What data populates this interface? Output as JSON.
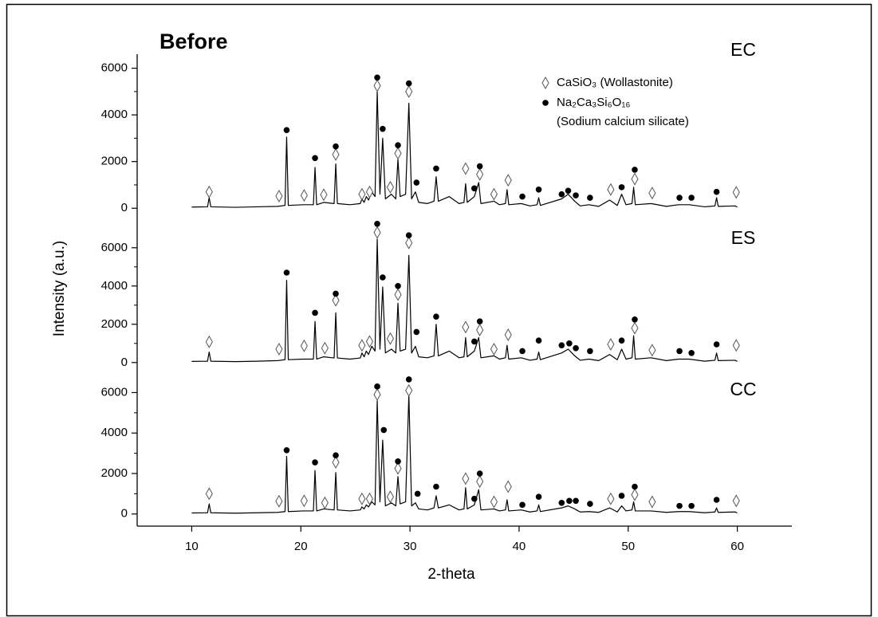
{
  "chart_data": {
    "type": "line",
    "title": "Before",
    "x_label": "2-theta",
    "y_label": "Intensity (a.u.)",
    "color": "#000000",
    "title_color": "#e8161b",
    "xlim": [
      5,
      65
    ],
    "xticks": [
      10,
      20,
      30,
      40,
      50,
      60
    ],
    "legend": [
      {
        "label": "CaSiO₃ (Wollastonite)"
      },
      {
        "label": "Na₂Ca₃Si₆O₁₆",
        "note": "(Sodium calcium silicate)"
      }
    ],
    "x": [
      10,
      11.45,
      11.6,
      11.75,
      14,
      16,
      17.9,
      18.55,
      18.7,
      18.85,
      20.2,
      21.15,
      21.3,
      21.45,
      22.1,
      23.05,
      23.2,
      23.35,
      24.5,
      25.45,
      25.6,
      25.8,
      26.0,
      26.2,
      26.5,
      26.8,
      27.0,
      27.25,
      27.5,
      27.75,
      28.3,
      28.7,
      28.9,
      29.1,
      29.6,
      29.9,
      30.15,
      30.5,
      30.8,
      31.6,
      32.2,
      32.4,
      32.6,
      33.6,
      34.5,
      34.95,
      35.1,
      35.25,
      35.9,
      36.3,
      36.5,
      37.7,
      38.2,
      38.75,
      38.9,
      39.05,
      40.2,
      41.0,
      41.65,
      41.8,
      41.95,
      43.9,
      44.5,
      45.1,
      45.6,
      46.4,
      47.3,
      48.3,
      49.0,
      49.4,
      49.8,
      50.35,
      50.5,
      50.65,
      52.1,
      53.5,
      54.6,
      55.6,
      57.0,
      57.95,
      58.1,
      58.25,
      59.8,
      60
    ],
    "series": [
      {
        "name": "EC",
        "ylim": [
          -300,
          6600
        ],
        "yticks": [
          0,
          2000,
          4000,
          6000
        ],
        "values": [
          50,
          60,
          450,
          60,
          40,
          60,
          80,
          120,
          3050,
          120,
          150,
          150,
          1750,
          150,
          250,
          200,
          1900,
          200,
          150,
          200,
          400,
          250,
          500,
          350,
          700,
          500,
          5000,
          600,
          3000,
          400,
          600,
          400,
          2100,
          500,
          600,
          4500,
          400,
          700,
          250,
          200,
          300,
          1350,
          300,
          500,
          200,
          250,
          1050,
          250,
          500,
          1100,
          200,
          300,
          150,
          200,
          800,
          150,
          200,
          100,
          150,
          450,
          120,
          400,
          600,
          300,
          100,
          150,
          80,
          350,
          120,
          600,
          150,
          200,
          900,
          150,
          200,
          80,
          150,
          150,
          60,
          100,
          450,
          80,
          100,
          50
        ],
        "marks": [
          [
            [
              11.6,
              700
            ],
            [
              18,
              520
            ],
            [
              20.3,
              550
            ],
            [
              22.1,
              580
            ],
            [
              23.2,
              2300
            ],
            [
              25.6,
              600
            ],
            [
              26.3,
              700
            ],
            [
              27.0,
              5250
            ],
            [
              28.2,
              900
            ],
            [
              28.9,
              2350
            ],
            [
              29.9,
              5000
            ],
            [
              35.1,
              1700
            ],
            [
              36.4,
              1450
            ],
            [
              37.7,
              600
            ],
            [
              39.0,
              1200
            ],
            [
              48.4,
              800
            ],
            [
              50.6,
              1250
            ],
            [
              52.2,
              650
            ],
            [
              59.9,
              680
            ]
          ],
          [
            [
              18.7,
              3350
            ],
            [
              21.3,
              2150
            ],
            [
              23.2,
              2650
            ],
            [
              27.0,
              5600
            ],
            [
              27.5,
              3400
            ],
            [
              28.9,
              2700
            ],
            [
              29.9,
              5350
            ],
            [
              30.6,
              1100
            ],
            [
              32.4,
              1700
            ],
            [
              35.9,
              850
            ],
            [
              36.4,
              1800
            ],
            [
              40.3,
              500
            ],
            [
              41.8,
              800
            ],
            [
              43.9,
              600
            ],
            [
              44.5,
              750
            ],
            [
              45.2,
              550
            ],
            [
              46.5,
              450
            ],
            [
              49.4,
              900
            ],
            [
              50.6,
              1650
            ],
            [
              54.7,
              450
            ],
            [
              55.8,
              450
            ],
            [
              58.1,
              700
            ]
          ]
        ]
      },
      {
        "name": "ES",
        "ylim": [
          -300,
          7700
        ],
        "yticks": [
          0,
          2000,
          4000,
          6000
        ],
        "values": [
          60,
          70,
          550,
          70,
          50,
          70,
          100,
          150,
          4300,
          150,
          180,
          180,
          2150,
          180,
          300,
          240,
          2600,
          240,
          180,
          240,
          500,
          300,
          600,
          420,
          850,
          600,
          6450,
          700,
          3950,
          500,
          700,
          500,
          3100,
          600,
          700,
          5600,
          500,
          850,
          300,
          250,
          350,
          2000,
          350,
          600,
          250,
          300,
          1300,
          300,
          600,
          1300,
          250,
          350,
          180,
          250,
          900,
          180,
          250,
          120,
          180,
          550,
          150,
          500,
          700,
          350,
          120,
          180,
          100,
          420,
          150,
          700,
          180,
          250,
          1400,
          180,
          250,
          100,
          180,
          180,
          70,
          120,
          500,
          100,
          120,
          60
        ],
        "marks": [
          [
            [
              11.6,
              1080
            ],
            [
              18,
              700
            ],
            [
              20.3,
              870
            ],
            [
              22.2,
              750
            ],
            [
              23.2,
              3250
            ],
            [
              25.6,
              900
            ],
            [
              26.3,
              1100
            ],
            [
              27.0,
              6800
            ],
            [
              28.2,
              1250
            ],
            [
              28.9,
              3550
            ],
            [
              29.9,
              6250
            ],
            [
              35.1,
              1850
            ],
            [
              36.4,
              1700
            ],
            [
              37.7,
              700
            ],
            [
              39.0,
              1450
            ],
            [
              48.4,
              950
            ],
            [
              50.6,
              1800
            ],
            [
              52.2,
              650
            ],
            [
              59.9,
              900
            ]
          ],
          [
            [
              18.7,
              4700
            ],
            [
              21.3,
              2600
            ],
            [
              23.2,
              3600
            ],
            [
              27.0,
              7250
            ],
            [
              27.5,
              4450
            ],
            [
              28.9,
              4000
            ],
            [
              29.9,
              6650
            ],
            [
              30.6,
              1600
            ],
            [
              32.4,
              2400
            ],
            [
              35.9,
              1100
            ],
            [
              36.4,
              2150
            ],
            [
              40.3,
              600
            ],
            [
              41.8,
              1150
            ],
            [
              43.9,
              900
            ],
            [
              44.6,
              1000
            ],
            [
              45.2,
              750
            ],
            [
              46.5,
              600
            ],
            [
              49.4,
              1150
            ],
            [
              50.6,
              2250
            ],
            [
              54.7,
              600
            ],
            [
              55.8,
              500
            ],
            [
              58.1,
              950
            ]
          ]
        ]
      },
      {
        "name": "CC",
        "ylim": [
          -600,
          7200
        ],
        "yticks": [
          0,
          2000,
          4000,
          6000
        ],
        "values": [
          50,
          60,
          500,
          60,
          40,
          60,
          80,
          120,
          2850,
          120,
          150,
          150,
          2150,
          150,
          250,
          200,
          2050,
          200,
          150,
          200,
          350,
          250,
          450,
          350,
          600,
          450,
          5600,
          600,
          3650,
          400,
          550,
          400,
          1850,
          500,
          600,
          5900,
          400,
          550,
          250,
          200,
          300,
          900,
          300,
          450,
          200,
          250,
          1300,
          250,
          450,
          1200,
          200,
          250,
          150,
          200,
          700,
          150,
          200,
          100,
          150,
          450,
          120,
          300,
          400,
          250,
          100,
          120,
          80,
          300,
          100,
          400,
          150,
          200,
          600,
          150,
          150,
          80,
          120,
          120,
          60,
          100,
          300,
          80,
          100,
          50
        ],
        "marks": [
          [
            [
              11.6,
              1000
            ],
            [
              18,
              630
            ],
            [
              20.3,
              650
            ],
            [
              22.2,
              550
            ],
            [
              23.2,
              2550
            ],
            [
              25.6,
              750
            ],
            [
              26.3,
              750
            ],
            [
              27.0,
              5900
            ],
            [
              28.2,
              850
            ],
            [
              28.9,
              2250
            ],
            [
              29.9,
              6100
            ],
            [
              35.1,
              1750
            ],
            [
              36.4,
              1600
            ],
            [
              37.7,
              600
            ],
            [
              39.0,
              1350
            ],
            [
              48.4,
              750
            ],
            [
              50.6,
              950
            ],
            [
              52.2,
              600
            ],
            [
              59.9,
              650
            ]
          ],
          [
            [
              18.7,
              3150
            ],
            [
              21.3,
              2550
            ],
            [
              23.2,
              2900
            ],
            [
              27.0,
              6300
            ],
            [
              27.6,
              4150
            ],
            [
              28.9,
              2600
            ],
            [
              29.9,
              6650
            ],
            [
              30.7,
              1000
            ],
            [
              32.4,
              1350
            ],
            [
              35.9,
              750
            ],
            [
              36.4,
              2000
            ],
            [
              40.3,
              450
            ],
            [
              41.8,
              850
            ],
            [
              43.9,
              550
            ],
            [
              44.6,
              650
            ],
            [
              45.2,
              650
            ],
            [
              46.5,
              500
            ],
            [
              49.4,
              900
            ],
            [
              50.6,
              1350
            ],
            [
              54.7,
              400
            ],
            [
              55.8,
              400
            ],
            [
              58.1,
              700
            ]
          ]
        ]
      }
    ]
  }
}
